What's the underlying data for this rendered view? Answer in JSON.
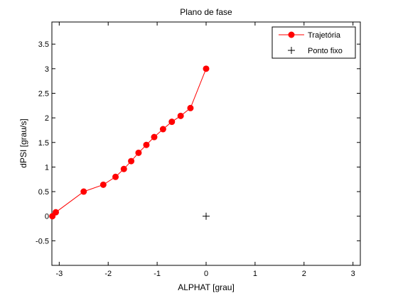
{
  "chart_data": {
    "type": "line",
    "title": "Plano de fase",
    "xlabel": "ALPHAT [grau]",
    "ylabel": "dPSI [grau/s]",
    "xlim": [
      -3.15,
      3.15
    ],
    "ylim": [
      -1.0,
      3.95
    ],
    "xticks": [
      -3,
      -2,
      -1,
      0,
      1,
      2,
      3
    ],
    "yticks": [
      -0.5,
      0,
      0.5,
      1,
      1.5,
      2,
      2.5,
      3,
      3.5
    ],
    "xtick_labels": [
      "-3",
      "-2",
      "-1",
      "0",
      "1",
      "2",
      "3"
    ],
    "ytick_labels": [
      "-0.5",
      "0",
      "0.5",
      "1",
      "1.5",
      "2",
      "2.5",
      "3",
      "3.5"
    ],
    "grid": false,
    "legend_position": "top-right",
    "series": [
      {
        "name": "Trajetória",
        "style": "line-marker",
        "color": "#ff0000",
        "marker": "circle",
        "x": [
          -3.14,
          -3.07,
          -2.5,
          -2.1,
          -1.85,
          -1.68,
          -1.53,
          -1.38,
          -1.22,
          -1.06,
          -0.88,
          -0.7,
          -0.52,
          -0.32,
          0.0
        ],
        "y": [
          0.0,
          0.08,
          0.5,
          0.64,
          0.8,
          0.96,
          1.12,
          1.29,
          1.45,
          1.61,
          1.77,
          1.92,
          2.04,
          2.2,
          3.0
        ]
      },
      {
        "name": "Ponto fixo",
        "style": "marker",
        "color": "#000000",
        "marker": "plus",
        "x": [
          0.0
        ],
        "y": [
          0.0
        ]
      }
    ]
  }
}
